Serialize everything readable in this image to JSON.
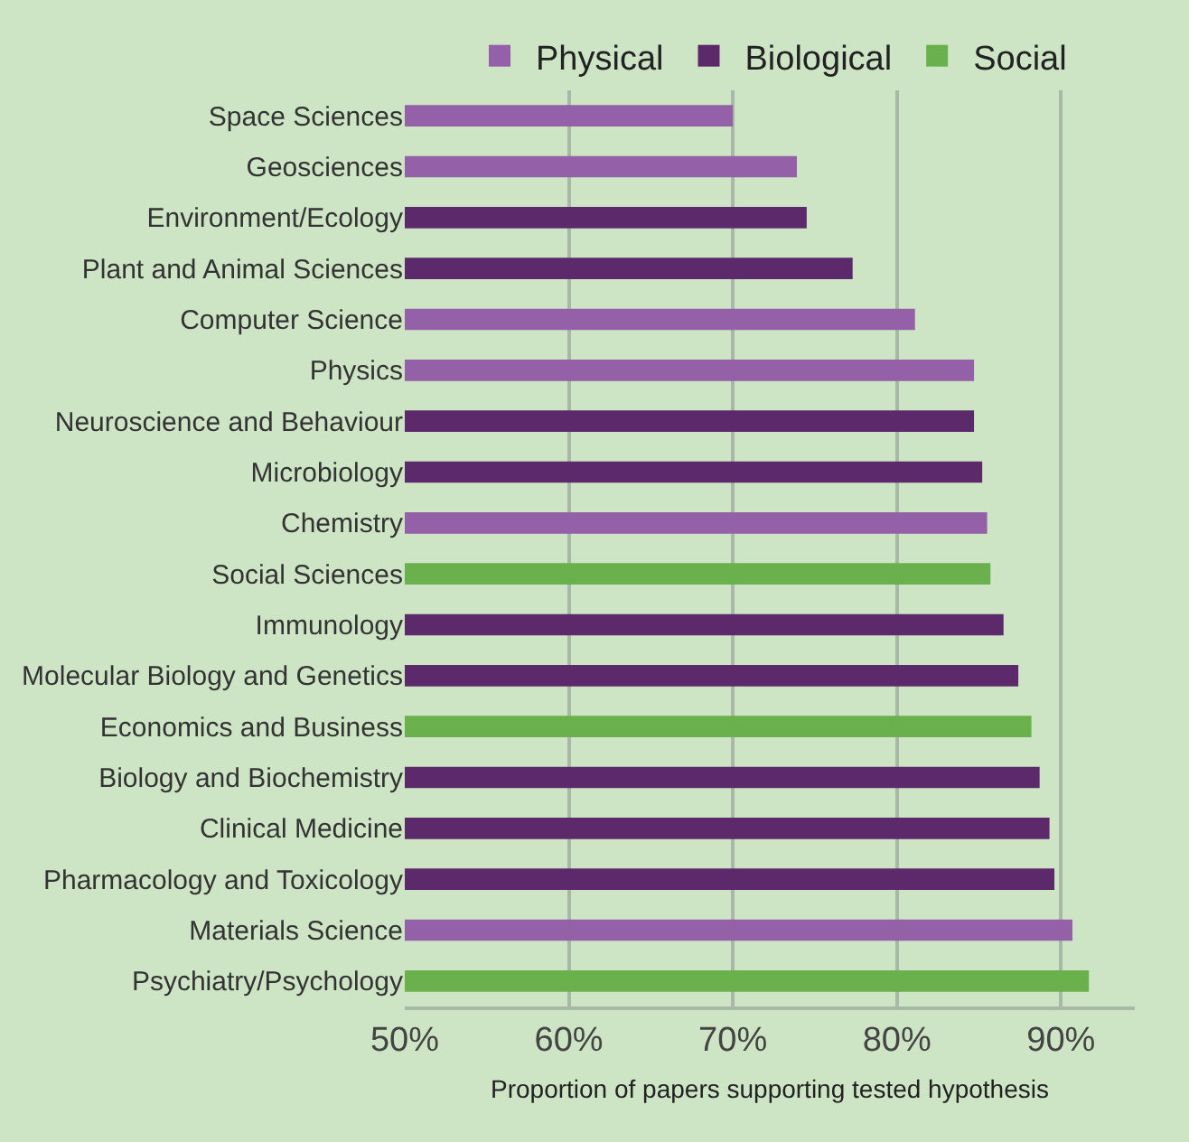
{
  "chart_data": {
    "type": "bar",
    "orientation": "horizontal",
    "xlabel": "Proportion of papers supporting tested hypothesis",
    "categories": [
      "Space Sciences",
      "Geosciences",
      "Environment/Ecology",
      "Plant and Animal Sciences",
      "Computer Science",
      "Physics",
      "Neuroscience and Behaviour",
      "Microbiology",
      "Chemistry",
      "Social Sciences",
      "Immunology",
      "Molecular Biology and Genetics",
      "Economics and Business",
      "Biology and Biochemistry",
      "Clinical Medicine",
      "Pharmacology and Toxicology",
      "Materials Science",
      "Psychiatry/Psychology"
    ],
    "series": [
      {
        "name": "Physical",
        "color": "#9460a8",
        "values": [
          70.0,
          73.9,
          null,
          null,
          81.1,
          84.7,
          null,
          null,
          85.5,
          null,
          null,
          null,
          null,
          null,
          null,
          null,
          90.7,
          null
        ]
      },
      {
        "name": "Biological",
        "color": "#5c2a6a",
        "values": [
          null,
          null,
          74.5,
          77.3,
          null,
          null,
          84.7,
          85.2,
          null,
          null,
          86.5,
          87.4,
          null,
          88.7,
          89.3,
          89.6,
          null,
          null
        ]
      },
      {
        "name": "Social",
        "color": "#6ab04c",
        "values": [
          null,
          null,
          null,
          null,
          null,
          null,
          null,
          null,
          null,
          85.7,
          null,
          null,
          88.2,
          null,
          null,
          null,
          null,
          91.7
        ]
      }
    ],
    "xlim": [
      50,
      94.5
    ],
    "xticks": [
      {
        "value": 50,
        "label": "50%"
      },
      {
        "value": 60,
        "label": "60%"
      },
      {
        "value": 70,
        "label": "70%"
      },
      {
        "value": 80,
        "label": "80%"
      },
      {
        "value": 90,
        "label": "90%"
      }
    ],
    "grid": "x",
    "legend": "top"
  }
}
